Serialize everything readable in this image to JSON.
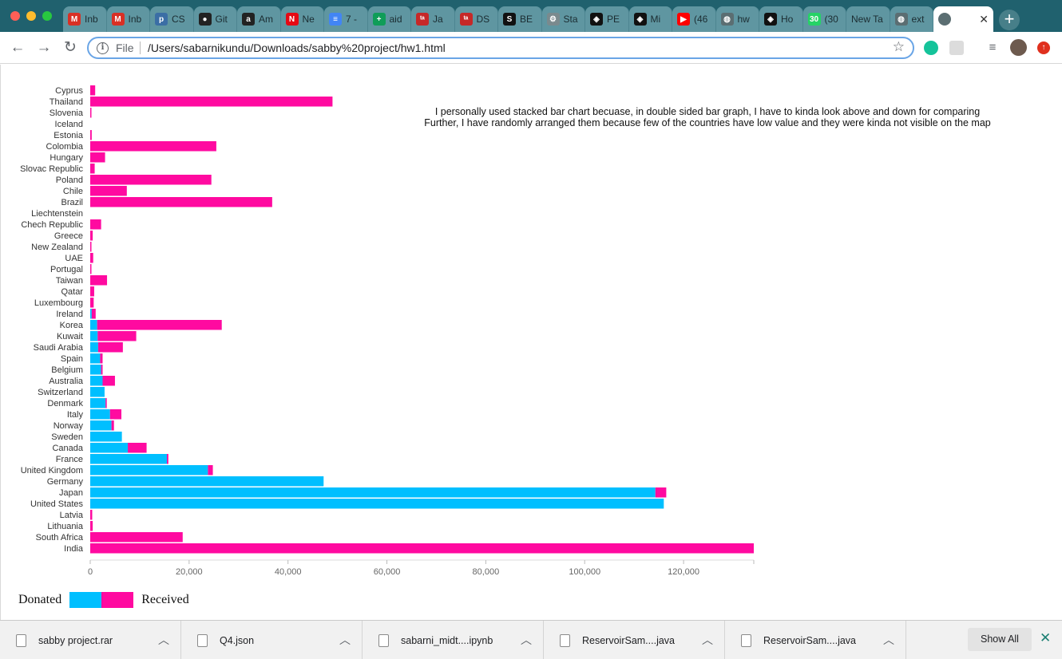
{
  "tabs": [
    {
      "title": "Inb",
      "icon": "gmail-icon",
      "color": "#d93025",
      "glyph": "M"
    },
    {
      "title": "Inb",
      "icon": "gmail-icon",
      "color": "#d93025",
      "glyph": "M"
    },
    {
      "title": "CS",
      "icon": "piazza-icon",
      "color": "#3b6ea5",
      "glyph": "p"
    },
    {
      "title": "Git",
      "icon": "github-icon",
      "color": "#222222",
      "glyph": "●"
    },
    {
      "title": "Am",
      "icon": "amazon-icon",
      "color": "#222222",
      "glyph": "a"
    },
    {
      "title": "Ne",
      "icon": "netflix-icon",
      "color": "#e50914",
      "glyph": "N"
    },
    {
      "title": "7 -",
      "icon": "google-docs-icon",
      "color": "#4285f4",
      "glyph": "≡"
    },
    {
      "title": "aid",
      "icon": "google-sheets-icon",
      "color": "#0f9d58",
      "glyph": "+"
    },
    {
      "title": "Ja",
      "icon": "ta-icon",
      "color": "#c62828",
      "glyph": "ᵗᵃ"
    },
    {
      "title": "DS",
      "icon": "ta-icon",
      "color": "#c62828",
      "glyph": "ᵗᵃ"
    },
    {
      "title": "BE",
      "icon": "scribd-icon",
      "color": "#111111",
      "glyph": "S"
    },
    {
      "title": "Sta",
      "icon": "gear-icon",
      "color": "#7a8a8e",
      "glyph": "⚙"
    },
    {
      "title": "PE",
      "icon": "codepen-icon",
      "color": "#111111",
      "glyph": "◈"
    },
    {
      "title": "Mi",
      "icon": "codepen-icon",
      "color": "#111111",
      "glyph": "◈"
    },
    {
      "title": "(46",
      "icon": "youtube-icon",
      "color": "#ff0000",
      "glyph": "▶"
    },
    {
      "title": "hw",
      "icon": "globe-icon",
      "color": "#5b6e72",
      "glyph": "◍"
    },
    {
      "title": "Ho",
      "icon": "codepen-icon",
      "color": "#111111",
      "glyph": "◈"
    },
    {
      "title": "(30",
      "icon": "whatsapp-icon",
      "color": "#25d366",
      "glyph": "30"
    },
    {
      "title": "New Ta",
      "icon": "",
      "color": "",
      "glyph": ""
    },
    {
      "title": "ext",
      "icon": "globe-icon",
      "color": "#5b6e72",
      "glyph": "◍"
    }
  ],
  "active_tab": {
    "icon": "globe-icon",
    "close": "✕"
  },
  "address_bar": {
    "scheme": "File",
    "url": "/Users/sabarnikundu/Downloads/sabby%20project/hw1.html"
  },
  "note_lines": [
    "I personally used stacked bar chart becuase, in double sided bar graph, I have to kinda look above and down for comparing",
    "Further, I have randomly arranged them because few of the countries have low value and they were kinda not visible on the map"
  ],
  "legend": {
    "donated": "Donated",
    "received": "Received"
  },
  "colors": {
    "donated": "#00bfff",
    "received": "#ff0aa0"
  },
  "chart_data": {
    "type": "bar",
    "orientation": "horizontal",
    "stacked": true,
    "categories": [
      "Cyprus",
      "Thailand",
      "Slovenia",
      "Iceland",
      "Estonia",
      "Colombia",
      "Hungary",
      "Slovac Republic",
      "Poland",
      "Chile",
      "Brazil",
      "Liechtenstein",
      "Chech Republic",
      "Greece",
      "New Zealand",
      "UAE",
      "Portugal",
      "Taiwan",
      "Qatar",
      "Luxembourg",
      "Ireland",
      "Korea",
      "Kuwait",
      "Saudi Arabia",
      "Spain",
      "Belgium",
      "Australia",
      "Switzerland",
      "Denmark",
      "Italy",
      "Norway",
      "Sweden",
      "Canada",
      "France",
      "United Kingdom",
      "Germany",
      "Japan",
      "United States",
      "Latvia",
      "Lithuania",
      "South Africa",
      "India"
    ],
    "series": [
      {
        "name": "Donated",
        "values": [
          0,
          0,
          0,
          0,
          0,
          0,
          0,
          0,
          0,
          0,
          0,
          0,
          0,
          0,
          0,
          0,
          0,
          0,
          0,
          0,
          300,
          1400,
          1500,
          1600,
          2000,
          2200,
          2500,
          2900,
          3100,
          4000,
          4300,
          6400,
          7600,
          15500,
          23800,
          47200,
          114300,
          116000,
          0,
          0,
          0,
          0
        ]
      },
      {
        "name": "Received",
        "values": [
          1000,
          49000,
          200,
          0,
          300,
          25500,
          3000,
          900,
          24500,
          7400,
          36800,
          0,
          2200,
          500,
          200,
          600,
          100,
          3400,
          800,
          700,
          800,
          25200,
          7800,
          5000,
          500,
          300,
          2500,
          0,
          200,
          2300,
          500,
          0,
          3800,
          300,
          1000,
          0,
          2200,
          0,
          400,
          500,
          18700,
          134200
        ]
      }
    ],
    "x_ticks": [
      "0",
      "20,000",
      "40,000",
      "60,000",
      "80,000",
      "100,000",
      "120,000"
    ],
    "xlim": [
      0,
      134200
    ]
  },
  "downloads": [
    {
      "name": "sabby project.rar",
      "icon": "archive-file-icon"
    },
    {
      "name": "Q4.json",
      "icon": "json-file-icon"
    },
    {
      "name": "sabarni_midt....ipynb",
      "icon": "document-file-icon"
    },
    {
      "name": "ReservoirSam....java",
      "icon": "java-file-icon"
    },
    {
      "name": "ReservoirSam....java",
      "icon": "java-file-icon"
    }
  ],
  "shelf": {
    "show_all": "Show All"
  }
}
